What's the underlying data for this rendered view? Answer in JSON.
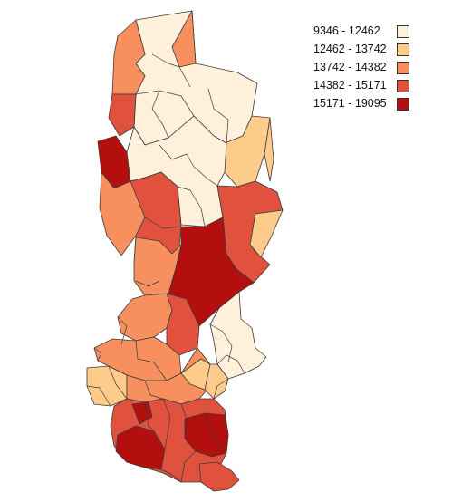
{
  "legend": {
    "items": [
      {
        "label": "9346 - 12462",
        "color": "#fff0dc"
      },
      {
        "label": "12462 - 13742",
        "color": "#fdcb8a"
      },
      {
        "label": "13742 - 14382",
        "color": "#f7905e"
      },
      {
        "label": "14382 - 15171",
        "color": "#e0523e"
      },
      {
        "label": "15171 - 19095",
        "color": "#b40f0f"
      }
    ]
  },
  "map": {
    "region_classes": [
      {
        "id": "upper-north",
        "class": 0
      },
      {
        "id": "north-peak-west",
        "class": 2
      },
      {
        "id": "north-peak-east",
        "class": 2
      },
      {
        "id": "north-west-strip",
        "class": 3
      },
      {
        "id": "west-dark-area",
        "class": 4
      },
      {
        "id": "north-east-light",
        "class": 1
      },
      {
        "id": "north-center-light",
        "class": 0
      },
      {
        "id": "center-left-orange",
        "class": 2
      },
      {
        "id": "center-band-red",
        "class": 3
      },
      {
        "id": "east-red",
        "class": 3
      },
      {
        "id": "east-light-strip",
        "class": 1
      },
      {
        "id": "center-dark-block",
        "class": 4
      },
      {
        "id": "center-orange-strip",
        "class": 2
      },
      {
        "id": "mid-left-orange",
        "class": 2
      },
      {
        "id": "mid-left-red",
        "class": 3
      },
      {
        "id": "mid-east-light",
        "class": 0
      },
      {
        "id": "lower-west-mixed",
        "class": 2
      },
      {
        "id": "lower-west-light",
        "class": 1
      },
      {
        "id": "lower-center-orange",
        "class": 2
      },
      {
        "id": "lower-east-orange",
        "class": 1
      },
      {
        "id": "south-red",
        "class": 3
      },
      {
        "id": "south-dark-west",
        "class": 4
      },
      {
        "id": "south-dark-east",
        "class": 4
      },
      {
        "id": "south-tip-red",
        "class": 3
      }
    ]
  }
}
